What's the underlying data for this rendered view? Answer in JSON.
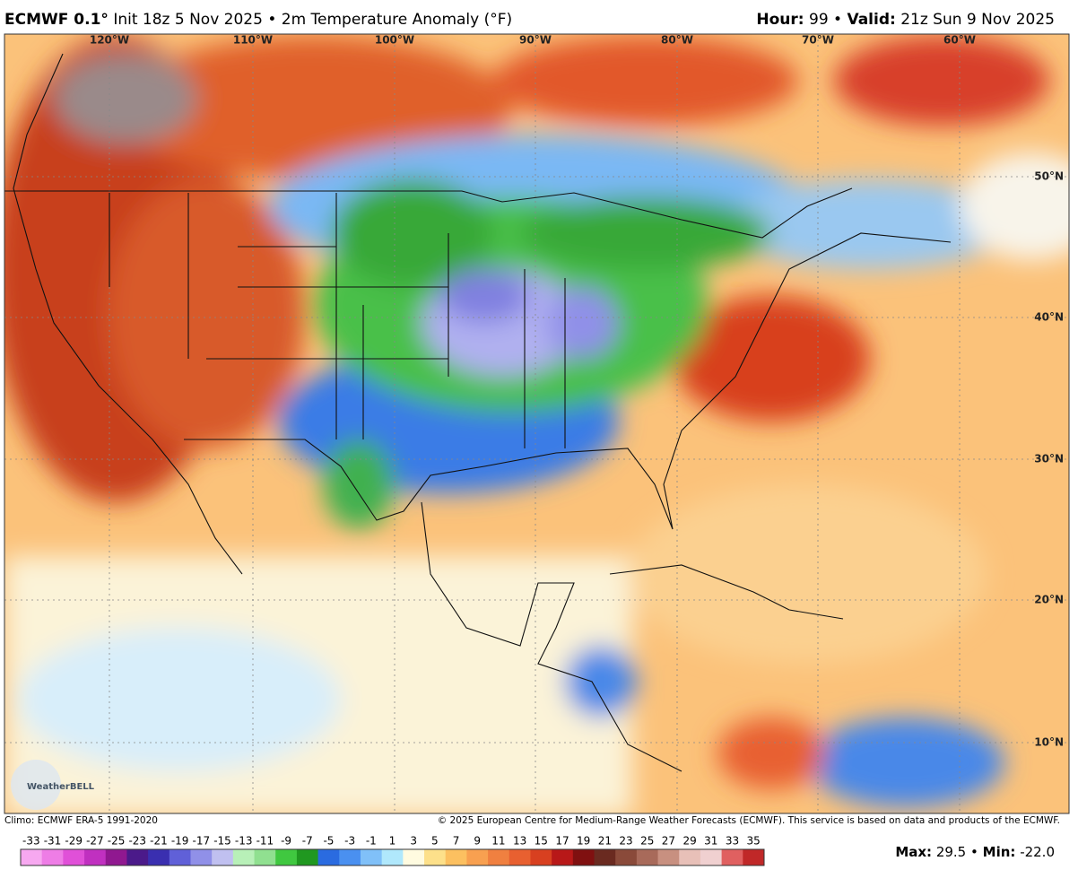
{
  "header": {
    "model": "ECMWF 0.1°",
    "subtitle": "Init 18z 5 Nov 2025",
    "separator": "•",
    "product": "2m Temperature Anomaly (°F)",
    "hour_label": "Hour:",
    "hour": 99,
    "valid_label": "Valid:",
    "valid": "21z Sun 9 Nov 2025"
  },
  "map": {
    "longitude_labels": [
      "120°W",
      "110°W",
      "100°W",
      "90°W",
      "80°W",
      "70°W",
      "60°W"
    ],
    "latitude_labels": [
      "50°N",
      "40°N",
      "30°N",
      "20°N",
      "10°N"
    ],
    "logo": "WeatherBELL"
  },
  "footer": {
    "climo": "Climo: ECMWF ERA-5 1991-2020",
    "copyright": "© 2025 European Centre for Medium-Range Weather Forecasts (ECMWF). This service is based on data and products of the ECMWF."
  },
  "colorbar": {
    "ticks": [
      -33,
      -31,
      -29,
      -27,
      -25,
      -23,
      -21,
      -19,
      -17,
      -15,
      -13,
      -11,
      -9,
      -7,
      -5,
      -3,
      -1,
      1,
      3,
      5,
      7,
      9,
      11,
      13,
      15,
      17,
      19,
      21,
      23,
      25,
      27,
      29,
      31,
      33,
      35
    ],
    "colors": [
      "#f7a8f0",
      "#ee7de6",
      "#e050d8",
      "#c030c0",
      "#901890",
      "#4b1a8a",
      "#3a2fb0",
      "#6060d8",
      "#9090e8",
      "#c0c0f0",
      "#b8f0b8",
      "#90e090",
      "#40c840",
      "#209820",
      "#2a6be0",
      "#4a90f0",
      "#80c0f8",
      "#b0e8fc",
      "#fffbe0",
      "#fde08a",
      "#fcc060",
      "#f8a050",
      "#f08040",
      "#e86030",
      "#d84020",
      "#b81818",
      "#801010",
      "#6a2a20",
      "#8a4a3a",
      "#a86a5a",
      "#c89080",
      "#e8c0b8",
      "#f0d0d0",
      "#e06060",
      "#c02828"
    ]
  },
  "stats": {
    "max_label": "Max:",
    "max": 29.5,
    "min_label": "Min:",
    "min": "-22.0"
  }
}
